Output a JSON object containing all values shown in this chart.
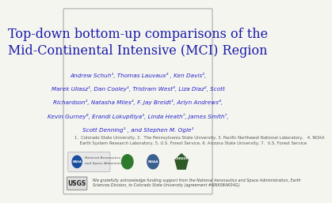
{
  "title_line1": "Top-down bottom-up comparisons of the",
  "title_line2": "Mid-Continental Intensive (MCI) Region",
  "title_color": "#1a1aaa",
  "title_fontsize": 11.5,
  "authors_line1": "Andrew Schuh¹, Thomas Lauvaux² , Ken Davis²,",
  "authors_line2": "Marek Uliasz¹, Dan Cooley¹, Tristram West³, Liza Diaz², Scott",
  "authors_line3": "Richardson², Natasha Miles², F. Jay Breidt¹, Arlyn Andrews⁴,",
  "authors_line4": "Kevin Gurney⁶, Erandi Lokupitiya¹, Linda Heath⁷, James Smith⁷,",
  "authors_line5": "Scott Denning¹ , and Stephen M. Ogle¹",
  "authors_color": "#2222cc",
  "authors_fontsize": 5.2,
  "affiliations_line1": "1.  Colorado State University, 2.  The Pennsylvania State University, 3. Pacific Northwest National Laboratory,   4. NOAA",
  "affiliations_line2": "    Earth System Research Laboratory, 5. U.S. Forest Service, 6. Arizona State University, 7.  U.S. Forest Service",
  "affiliations_fontsize": 3.8,
  "affiliations_color": "#555555",
  "acknowledgment": "We gratefully acknowledge funding support from the National Aeronautics and Space Administration, Earth\nSciences Division, to Colorado State University (agreement #NNX08AK04G).",
  "acknowledgment_fontsize": 3.5,
  "acknowledgment_color": "#444444",
  "bg_color": "#f5f5f0",
  "border_color": "#aaaaaa",
  "nasa_bg": "#e8e8e8",
  "nasa_circle_color": "#1a4fa0",
  "green_logo_color": "#2d7a2d",
  "noaa_color": "#3a6090",
  "csrees_color": "#2d5a27",
  "usgs_bg": "#dddddd"
}
